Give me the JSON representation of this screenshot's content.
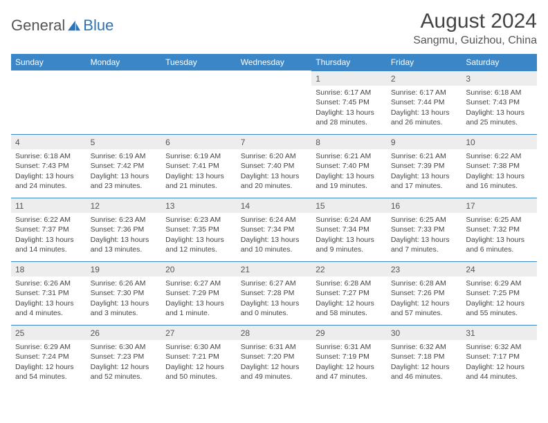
{
  "brand": {
    "part1": "General",
    "part2": "Blue"
  },
  "colors": {
    "header_bg": "#3b86c7",
    "header_text": "#ffffff",
    "daynum_bg": "#ededed",
    "daynum_border": "#3b86c7",
    "body_text": "#444444",
    "title_text": "#444444",
    "brand_blue": "#2d73b5"
  },
  "title": "August 2024",
  "location": "Sangmu, Guizhou, China",
  "day_headers": [
    "Sunday",
    "Monday",
    "Tuesday",
    "Wednesday",
    "Thursday",
    "Friday",
    "Saturday"
  ],
  "weeks": [
    [
      {
        "n": "",
        "sr": "",
        "ss": "",
        "dl": ""
      },
      {
        "n": "",
        "sr": "",
        "ss": "",
        "dl": ""
      },
      {
        "n": "",
        "sr": "",
        "ss": "",
        "dl": ""
      },
      {
        "n": "",
        "sr": "",
        "ss": "",
        "dl": ""
      },
      {
        "n": "1",
        "sr": "Sunrise: 6:17 AM",
        "ss": "Sunset: 7:45 PM",
        "dl": "Daylight: 13 hours and 28 minutes."
      },
      {
        "n": "2",
        "sr": "Sunrise: 6:17 AM",
        "ss": "Sunset: 7:44 PM",
        "dl": "Daylight: 13 hours and 26 minutes."
      },
      {
        "n": "3",
        "sr": "Sunrise: 6:18 AM",
        "ss": "Sunset: 7:43 PM",
        "dl": "Daylight: 13 hours and 25 minutes."
      }
    ],
    [
      {
        "n": "4",
        "sr": "Sunrise: 6:18 AM",
        "ss": "Sunset: 7:43 PM",
        "dl": "Daylight: 13 hours and 24 minutes."
      },
      {
        "n": "5",
        "sr": "Sunrise: 6:19 AM",
        "ss": "Sunset: 7:42 PM",
        "dl": "Daylight: 13 hours and 23 minutes."
      },
      {
        "n": "6",
        "sr": "Sunrise: 6:19 AM",
        "ss": "Sunset: 7:41 PM",
        "dl": "Daylight: 13 hours and 21 minutes."
      },
      {
        "n": "7",
        "sr": "Sunrise: 6:20 AM",
        "ss": "Sunset: 7:40 PM",
        "dl": "Daylight: 13 hours and 20 minutes."
      },
      {
        "n": "8",
        "sr": "Sunrise: 6:21 AM",
        "ss": "Sunset: 7:40 PM",
        "dl": "Daylight: 13 hours and 19 minutes."
      },
      {
        "n": "9",
        "sr": "Sunrise: 6:21 AM",
        "ss": "Sunset: 7:39 PM",
        "dl": "Daylight: 13 hours and 17 minutes."
      },
      {
        "n": "10",
        "sr": "Sunrise: 6:22 AM",
        "ss": "Sunset: 7:38 PM",
        "dl": "Daylight: 13 hours and 16 minutes."
      }
    ],
    [
      {
        "n": "11",
        "sr": "Sunrise: 6:22 AM",
        "ss": "Sunset: 7:37 PM",
        "dl": "Daylight: 13 hours and 14 minutes."
      },
      {
        "n": "12",
        "sr": "Sunrise: 6:23 AM",
        "ss": "Sunset: 7:36 PM",
        "dl": "Daylight: 13 hours and 13 minutes."
      },
      {
        "n": "13",
        "sr": "Sunrise: 6:23 AM",
        "ss": "Sunset: 7:35 PM",
        "dl": "Daylight: 13 hours and 12 minutes."
      },
      {
        "n": "14",
        "sr": "Sunrise: 6:24 AM",
        "ss": "Sunset: 7:34 PM",
        "dl": "Daylight: 13 hours and 10 minutes."
      },
      {
        "n": "15",
        "sr": "Sunrise: 6:24 AM",
        "ss": "Sunset: 7:34 PM",
        "dl": "Daylight: 13 hours and 9 minutes."
      },
      {
        "n": "16",
        "sr": "Sunrise: 6:25 AM",
        "ss": "Sunset: 7:33 PM",
        "dl": "Daylight: 13 hours and 7 minutes."
      },
      {
        "n": "17",
        "sr": "Sunrise: 6:25 AM",
        "ss": "Sunset: 7:32 PM",
        "dl": "Daylight: 13 hours and 6 minutes."
      }
    ],
    [
      {
        "n": "18",
        "sr": "Sunrise: 6:26 AM",
        "ss": "Sunset: 7:31 PM",
        "dl": "Daylight: 13 hours and 4 minutes."
      },
      {
        "n": "19",
        "sr": "Sunrise: 6:26 AM",
        "ss": "Sunset: 7:30 PM",
        "dl": "Daylight: 13 hours and 3 minutes."
      },
      {
        "n": "20",
        "sr": "Sunrise: 6:27 AM",
        "ss": "Sunset: 7:29 PM",
        "dl": "Daylight: 13 hours and 1 minute."
      },
      {
        "n": "21",
        "sr": "Sunrise: 6:27 AM",
        "ss": "Sunset: 7:28 PM",
        "dl": "Daylight: 13 hours and 0 minutes."
      },
      {
        "n": "22",
        "sr": "Sunrise: 6:28 AM",
        "ss": "Sunset: 7:27 PM",
        "dl": "Daylight: 12 hours and 58 minutes."
      },
      {
        "n": "23",
        "sr": "Sunrise: 6:28 AM",
        "ss": "Sunset: 7:26 PM",
        "dl": "Daylight: 12 hours and 57 minutes."
      },
      {
        "n": "24",
        "sr": "Sunrise: 6:29 AM",
        "ss": "Sunset: 7:25 PM",
        "dl": "Daylight: 12 hours and 55 minutes."
      }
    ],
    [
      {
        "n": "25",
        "sr": "Sunrise: 6:29 AM",
        "ss": "Sunset: 7:24 PM",
        "dl": "Daylight: 12 hours and 54 minutes."
      },
      {
        "n": "26",
        "sr": "Sunrise: 6:30 AM",
        "ss": "Sunset: 7:23 PM",
        "dl": "Daylight: 12 hours and 52 minutes."
      },
      {
        "n": "27",
        "sr": "Sunrise: 6:30 AM",
        "ss": "Sunset: 7:21 PM",
        "dl": "Daylight: 12 hours and 50 minutes."
      },
      {
        "n": "28",
        "sr": "Sunrise: 6:31 AM",
        "ss": "Sunset: 7:20 PM",
        "dl": "Daylight: 12 hours and 49 minutes."
      },
      {
        "n": "29",
        "sr": "Sunrise: 6:31 AM",
        "ss": "Sunset: 7:19 PM",
        "dl": "Daylight: 12 hours and 47 minutes."
      },
      {
        "n": "30",
        "sr": "Sunrise: 6:32 AM",
        "ss": "Sunset: 7:18 PM",
        "dl": "Daylight: 12 hours and 46 minutes."
      },
      {
        "n": "31",
        "sr": "Sunrise: 6:32 AM",
        "ss": "Sunset: 7:17 PM",
        "dl": "Daylight: 12 hours and 44 minutes."
      }
    ]
  ]
}
